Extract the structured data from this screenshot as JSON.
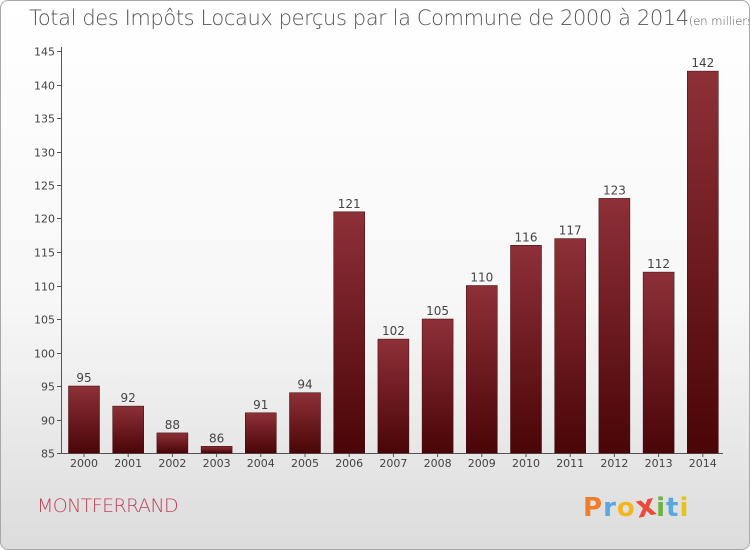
{
  "header": {
    "title": "Total des Impôts Locaux perçus par la Commune de 2000 à 2014",
    "unit": "(en milliers d'€)"
  },
  "commune": "MONTFERRAND",
  "logo": {
    "text": "Proxiti",
    "letters": [
      "P",
      "r",
      "o",
      "x",
      "i",
      "t",
      "i"
    ],
    "colors": [
      "#f07d2a",
      "#5aa9dc",
      "#f3b61f",
      "#e94b3c",
      "#6cb33f",
      "#5aa9dc",
      "#e7c21b"
    ]
  },
  "colors": {
    "bar_top": "#8e3038",
    "bar_bottom": "#4a0507",
    "axis": "#555555",
    "grid": "#cccccc"
  },
  "chart_data": {
    "type": "bar",
    "title": "Total des Impôts Locaux perçus par la Commune de 2000 à 2014",
    "xlabel": "",
    "ylabel": "",
    "categories": [
      "2000",
      "2001",
      "2002",
      "2003",
      "2004",
      "2005",
      "2006",
      "2007",
      "2008",
      "2009",
      "2010",
      "2011",
      "2012",
      "2013",
      "2014"
    ],
    "values": [
      95,
      92,
      88,
      86,
      91,
      94,
      121,
      102,
      105,
      110,
      116,
      117,
      123,
      112,
      142
    ],
    "ylim": [
      85,
      145
    ],
    "yticks": [
      85,
      90,
      95,
      100,
      105,
      110,
      115,
      120,
      125,
      130,
      135,
      140,
      145
    ],
    "grid": false,
    "data_labels": true
  }
}
